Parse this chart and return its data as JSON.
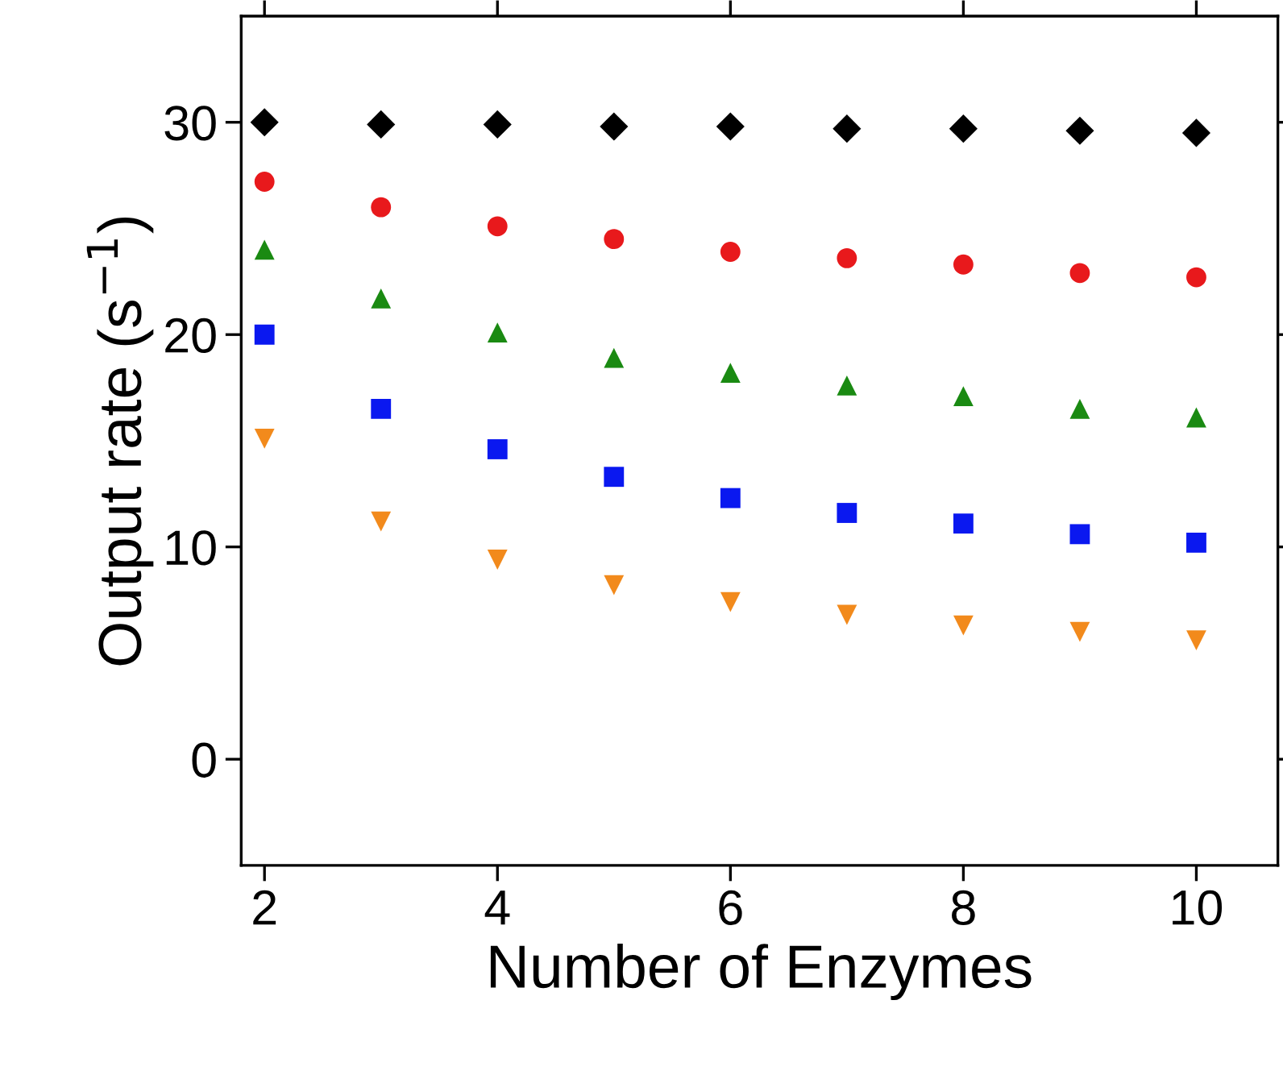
{
  "chart_data": {
    "type": "scatter",
    "xlabel": "Number of Enzymes",
    "ylabel": "Output rate (s$^{−1}$)",
    "x": [
      2,
      3,
      4,
      5,
      6,
      7,
      8,
      9,
      10
    ],
    "series": [
      {
        "color": "#000000",
        "marker": "diamond",
        "values": [
          30.0,
          29.9,
          29.9,
          29.8,
          29.8,
          29.7,
          29.7,
          29.6,
          29.5
        ]
      },
      {
        "color": "#e8191c",
        "marker": "circle",
        "values": [
          27.2,
          26.0,
          25.1,
          24.5,
          23.9,
          23.6,
          23.3,
          22.9,
          22.7
        ]
      },
      {
        "color": "#1a8a12",
        "marker": "triangle",
        "values": [
          24.0,
          21.7,
          20.1,
          18.9,
          18.2,
          17.6,
          17.1,
          16.5,
          16.1
        ]
      },
      {
        "color": "#0a18f0",
        "marker": "square",
        "values": [
          20.0,
          16.5,
          14.6,
          13.3,
          12.3,
          11.6,
          11.1,
          10.6,
          10.2
        ]
      },
      {
        "color": "#f28a1c",
        "marker": "triangle_down",
        "values": [
          15.1,
          11.2,
          9.4,
          8.2,
          7.4,
          6.8,
          6.3,
          6.0,
          5.6
        ]
      }
    ],
    "xlim": [
      1.8,
      10.7
    ],
    "ylim": [
      -5,
      35
    ],
    "xticks": [
      2,
      4,
      6,
      8,
      10
    ],
    "yticks": [
      0,
      10,
      20,
      30
    ],
    "grid": false,
    "legend": false
  }
}
